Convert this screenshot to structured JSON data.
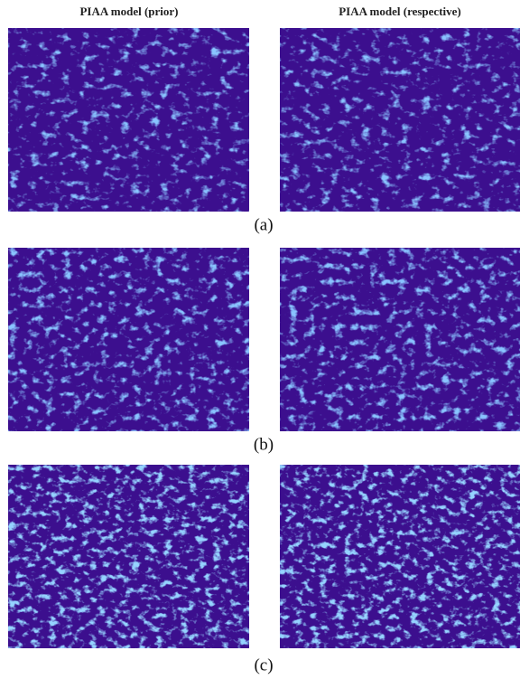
{
  "header": {
    "columns": [
      "PIAA  model (prior)",
      "PIAA  model (respective)"
    ]
  },
  "rows": [
    {
      "label": "(a)"
    },
    {
      "label": "(b)"
    },
    {
      "label": "(c)"
    }
  ]
}
